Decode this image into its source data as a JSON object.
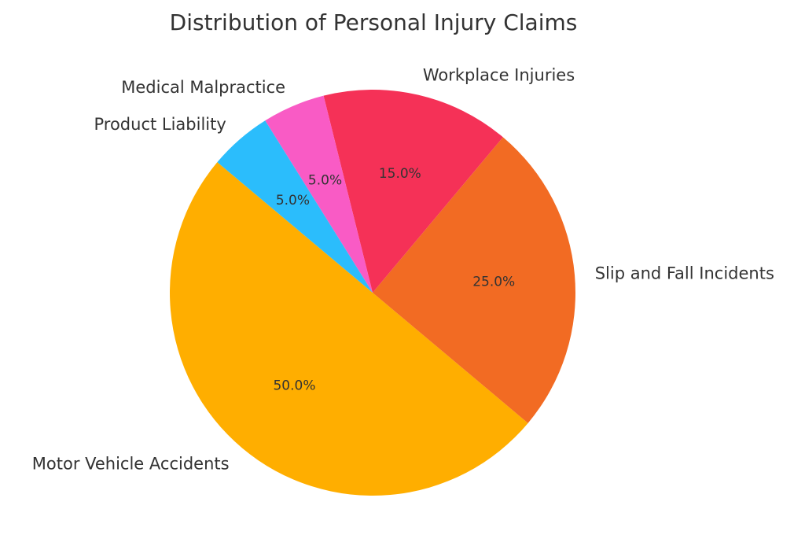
{
  "chart_data": {
    "type": "pie",
    "title": "Distribution of Personal Injury Claims",
    "start_angle_deg": 140,
    "direction": "counterclockwise",
    "slices": [
      {
        "label": "Motor Vehicle Accidents",
        "value": 50,
        "pct_label": "50.0%",
        "color": "#FFAE00"
      },
      {
        "label": "Slip and Fall Incidents",
        "value": 25,
        "pct_label": "25.0%",
        "color": "#F26B23"
      },
      {
        "label": "Workplace Injuries",
        "value": 15,
        "pct_label": "15.0%",
        "color": "#F53157"
      },
      {
        "label": "Medical Malpractice",
        "value": 5,
        "pct_label": "5.0%",
        "color": "#F95BC5"
      },
      {
        "label": "Product Liability",
        "value": 5,
        "pct_label": "5.0%",
        "color": "#2BBDFC"
      }
    ],
    "text_color": "#333333",
    "legend": "none"
  }
}
